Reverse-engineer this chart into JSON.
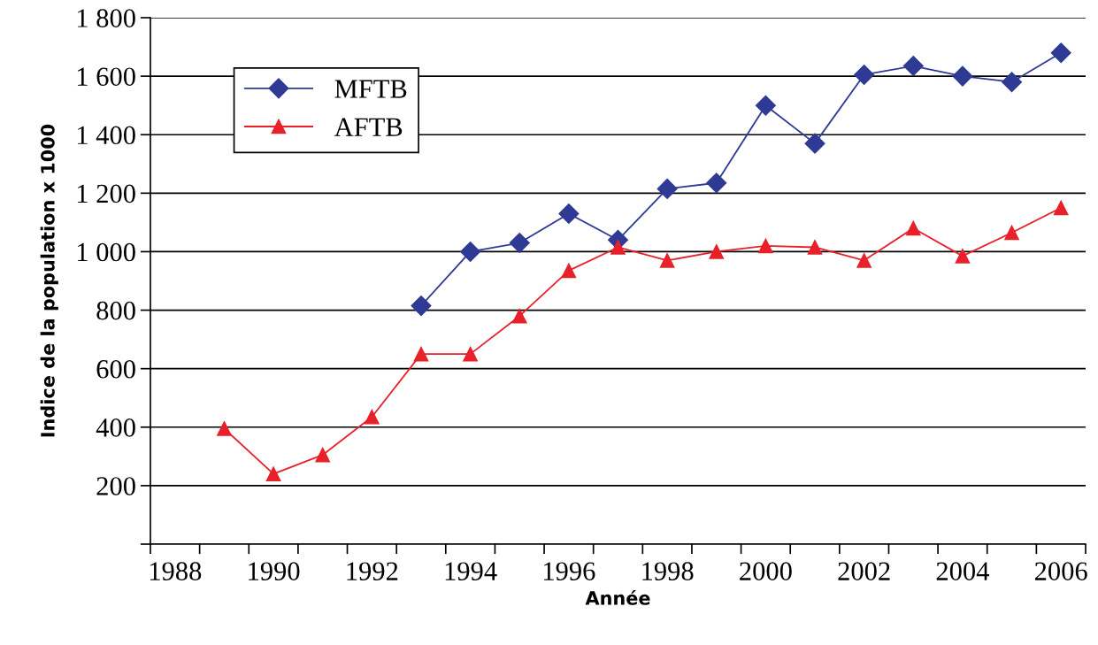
{
  "chart_data": {
    "type": "line",
    "xlabel": "Année",
    "ylabel": "Indice de la population x 1000",
    "categories": [
      "1988",
      null,
      "1990",
      null,
      "1992",
      null,
      "1994",
      null,
      "1996",
      null,
      "1998",
      null,
      "2000",
      null,
      "2002",
      null,
      "2004",
      null,
      "2006"
    ],
    "series": [
      {
        "name": "MFTB",
        "color": "#2e3a94",
        "marker": "diamond",
        "values": [
          null,
          null,
          null,
          null,
          null,
          815,
          1000,
          1030,
          1130,
          1040,
          1215,
          1235,
          1500,
          1370,
          1605,
          1635,
          1600,
          1580,
          1680
        ]
      },
      {
        "name": "AFTB",
        "color": "#e8202a",
        "marker": "triangle",
        "values": [
          null,
          395,
          240,
          305,
          435,
          650,
          650,
          780,
          935,
          1015,
          970,
          1000,
          1020,
          1015,
          970,
          1080,
          985,
          1065,
          1150
        ]
      }
    ],
    "ylim": [
      0,
      1800
    ],
    "yticks": [
      {
        "value": 0,
        "label": null
      },
      {
        "value": 200,
        "label": "200"
      },
      {
        "value": 400,
        "label": "400"
      },
      {
        "value": 600,
        "label": "600"
      },
      {
        "value": 800,
        "label": "800"
      },
      {
        "value": 1000,
        "label": "1 000"
      },
      {
        "value": 1200,
        "label": "1 200"
      },
      {
        "value": 1400,
        "label": "1 400"
      },
      {
        "value": 1600,
        "label": "1 600"
      },
      {
        "value": 1800,
        "label": "1 800"
      }
    ],
    "grid": "y",
    "legend": "top left",
    "line_style": "solid"
  }
}
